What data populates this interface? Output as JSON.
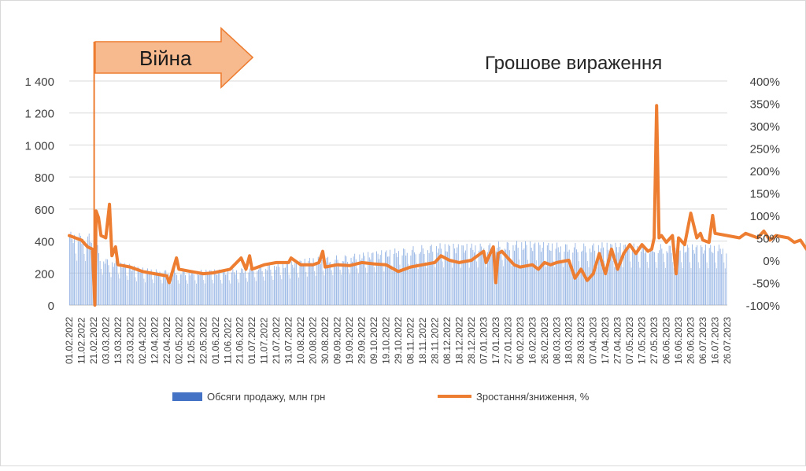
{
  "chart_data": {
    "type": "bar",
    "title": "Грошове вираження",
    "annotation": "Війна",
    "war_start": "24.02.2022",
    "y_left": {
      "ticks": [
        "0",
        "200",
        "400",
        "600",
        "800",
        "1 000",
        "1 200",
        "1 400"
      ],
      "range": [
        0,
        1400
      ]
    },
    "y_right": {
      "ticks": [
        "-100%",
        "-50%",
        "0%",
        "50%",
        "100%",
        "150%",
        "200%",
        "250%",
        "300%",
        "350%",
        "400%"
      ],
      "range": [
        -100,
        400
      ]
    },
    "x_ticks": [
      "01.02.2022",
      "11.02.2022",
      "21.02.2022",
      "03.03.2022",
      "13.03.2022",
      "23.03.2022",
      "02.04.2022",
      "12.04.2022",
      "22.04.2022",
      "02.05.2022",
      "12.05.2022",
      "22.05.2022",
      "01.06.2022",
      "11.06.2022",
      "21.06.2022",
      "01.07.2022",
      "11.07.2022",
      "21.07.2022",
      "31.07.2022",
      "10.08.2022",
      "20.08.2022",
      "30.08.2022",
      "09.09.2022",
      "19.09.2022",
      "29.09.2022",
      "09.10.2022",
      "19.10.2022",
      "29.10.2022",
      "08.11.2022",
      "18.11.2022",
      "28.11.2022",
      "08.12.2022",
      "18.12.2022",
      "28.12.2022",
      "07.01.2023",
      "17.01.2023",
      "27.01.2023",
      "06.02.2023",
      "16.02.2023",
      "26.02.2023",
      "08.03.2023",
      "18.03.2023",
      "28.03.2023",
      "07.04.2023",
      "17.04.2023",
      "27.04.2023",
      "07.05.2023",
      "17.05.2023",
      "27.05.2023",
      "06.06.2023",
      "16.06.2023",
      "26.06.2023",
      "06.07.2023",
      "16.07.2023",
      "26.07.2023"
    ],
    "series": [
      {
        "name": "Обсяги продажу, млн грн",
        "axis": "left",
        "color": "#4472c4",
        "points": [
          [
            0,
            450
          ],
          [
            20,
            440
          ],
          [
            25,
            320
          ],
          [
            30,
            290
          ],
          [
            60,
            230
          ],
          [
            70,
            220
          ],
          [
            100,
            215
          ],
          [
            120,
            220
          ],
          [
            130,
            215
          ],
          [
            150,
            240
          ],
          [
            180,
            265
          ],
          [
            200,
            295
          ],
          [
            220,
            305
          ],
          [
            250,
            330
          ],
          [
            280,
            360
          ],
          [
            300,
            380
          ],
          [
            320,
            375
          ],
          [
            340,
            380
          ],
          [
            360,
            395
          ],
          [
            370,
            395
          ],
          [
            390,
            385
          ],
          [
            420,
            380
          ],
          [
            440,
            385
          ],
          [
            470,
            375
          ],
          [
            540,
            370
          ]
        ]
      },
      {
        "name": "Зростання/зниження, %",
        "axis": "right",
        "color": "#ed7d31",
        "points": [
          [
            0,
            55
          ],
          [
            5,
            50
          ],
          [
            10,
            45
          ],
          [
            15,
            30
          ],
          [
            19,
            25
          ],
          [
            21,
            -100
          ],
          [
            22,
            110
          ],
          [
            24,
            95
          ],
          [
            26,
            55
          ],
          [
            30,
            50
          ],
          [
            33,
            125
          ],
          [
            35,
            10
          ],
          [
            38,
            30
          ],
          [
            40,
            -10
          ],
          [
            50,
            -15
          ],
          [
            60,
            -25
          ],
          [
            70,
            -30
          ],
          [
            80,
            -35
          ],
          [
            82,
            -50
          ],
          [
            88,
            5
          ],
          [
            90,
            -20
          ],
          [
            100,
            -25
          ],
          [
            110,
            -30
          ],
          [
            118,
            -28
          ],
          [
            132,
            -20
          ],
          [
            141,
            5
          ],
          [
            145,
            -20
          ],
          [
            148,
            10
          ],
          [
            150,
            -20
          ],
          [
            160,
            -10
          ],
          [
            170,
            -5
          ],
          [
            180,
            -5
          ],
          [
            182,
            5
          ],
          [
            190,
            -10
          ],
          [
            200,
            -10
          ],
          [
            205,
            -5
          ],
          [
            208,
            20
          ],
          [
            210,
            -15
          ],
          [
            220,
            -10
          ],
          [
            230,
            -12
          ],
          [
            240,
            -5
          ],
          [
            250,
            -8
          ],
          [
            260,
            -10
          ],
          [
            270,
            -25
          ],
          [
            280,
            -15
          ],
          [
            290,
            -10
          ],
          [
            300,
            -5
          ],
          [
            305,
            10
          ],
          [
            312,
            0
          ],
          [
            320,
            -5
          ],
          [
            330,
            0
          ],
          [
            335,
            10
          ],
          [
            340,
            20
          ],
          [
            342,
            -5
          ],
          [
            348,
            30
          ],
          [
            350,
            -50
          ],
          [
            352,
            15
          ],
          [
            355,
            20
          ],
          [
            360,
            5
          ],
          [
            365,
            -10
          ],
          [
            370,
            -15
          ],
          [
            380,
            -10
          ],
          [
            385,
            -20
          ],
          [
            390,
            -5
          ],
          [
            395,
            -10
          ],
          [
            400,
            -5
          ],
          [
            410,
            0
          ],
          [
            415,
            -40
          ],
          [
            420,
            -20
          ],
          [
            425,
            -45
          ],
          [
            430,
            -30
          ],
          [
            435,
            15
          ],
          [
            440,
            -30
          ],
          [
            445,
            25
          ],
          [
            450,
            -20
          ],
          [
            455,
            15
          ],
          [
            460,
            35
          ],
          [
            465,
            15
          ],
          [
            470,
            35
          ],
          [
            475,
            20
          ],
          [
            478,
            25
          ],
          [
            480,
            50
          ],
          [
            482,
            345
          ],
          [
            484,
            50
          ],
          [
            486,
            55
          ],
          [
            490,
            40
          ],
          [
            495,
            55
          ],
          [
            498,
            -30
          ],
          [
            500,
            50
          ],
          [
            505,
            35
          ],
          [
            510,
            105
          ],
          [
            515,
            50
          ],
          [
            518,
            60
          ],
          [
            520,
            45
          ],
          [
            525,
            40
          ],
          [
            528,
            100
          ],
          [
            530,
            60
          ],
          [
            540,
            55
          ],
          [
            550,
            50
          ],
          [
            555,
            60
          ],
          [
            560,
            55
          ],
          [
            565,
            50
          ],
          [
            570,
            65
          ],
          [
            575,
            45
          ],
          [
            580,
            55
          ],
          [
            590,
            50
          ],
          [
            595,
            40
          ],
          [
            600,
            45
          ],
          [
            605,
            25
          ],
          [
            610,
            40
          ]
        ]
      }
    ],
    "legend_position": "bottom",
    "grid": true
  }
}
